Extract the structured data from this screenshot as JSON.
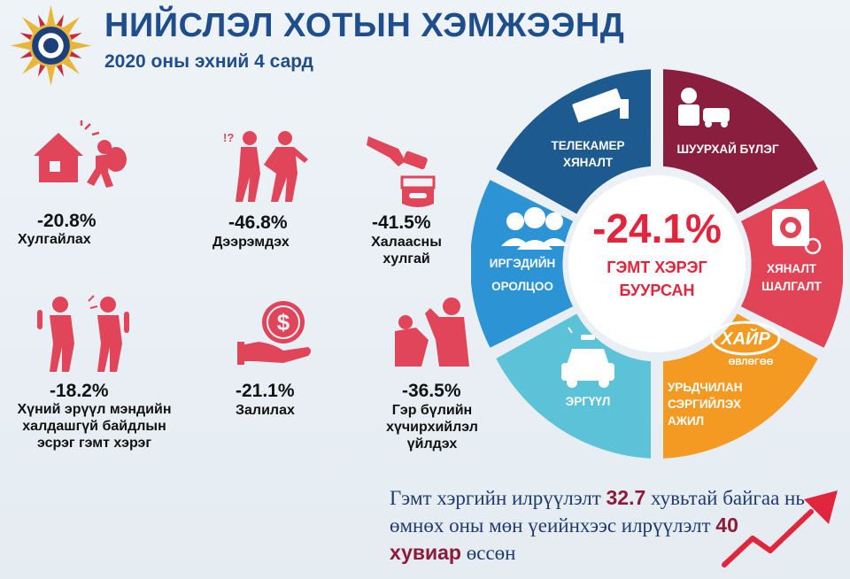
{
  "header": {
    "title": "НИЙСЛЭЛ ХОТЫН ХЭМЖЭЭНД",
    "subtitle": "2020 оны эхний 4 сард"
  },
  "crimes": [
    {
      "pct": "-20.8%",
      "label": "Хулгайлах",
      "icon": "burglary-icon"
    },
    {
      "pct": "-46.8%",
      "label": "Дээрэмдэх",
      "icon": "robbery-icon"
    },
    {
      "pct": "-41.5%",
      "label": "Халаасны хулгай",
      "icon": "pickpocket-icon"
    },
    {
      "pct": "-18.2%",
      "label": "Хүний эрүүл мэндийн халдашгүй байдлын эсрэг гэмт хэрэг",
      "icon": "assault-icon"
    },
    {
      "pct": "-21.1%",
      "label": "Залилах",
      "icon": "fraud-money-icon"
    },
    {
      "pct": "-36.5%",
      "label": "Гэр бүлийн хүчирхийлэл үйлдэх",
      "icon": "domestic-violence-icon"
    }
  ],
  "wheel": {
    "center_pct": "-24.1%",
    "center_line1": "ГЭМТ ХЭРЭГ",
    "center_line2": "БУУРСАН",
    "segments": [
      {
        "line1": "ТЕЛЕКАМЕР",
        "line2": "ХЯНАЛТ",
        "color": "#1d5a8f",
        "icon": "cctv-camera-icon"
      },
      {
        "line1": "ШУУРХАЙ БҮЛЭГ",
        "line2": "",
        "color": "#8a1e3f",
        "icon": "police-car-officer-icon"
      },
      {
        "line1": "ХЯНАЛТ",
        "line2": "ШАЛГАЛТ",
        "color": "#e04456",
        "icon": "inspection-icon"
      },
      {
        "line1": "УРЬДЧИЛАН",
        "line2": "СЭРГИЙЛЭХ",
        "line3": "АЖИЛ",
        "color": "#f49a23",
        "icon": "khair-logo-icon",
        "logo_text": "ХАЙР",
        "logo_sub": "ӨВЛӨГӨӨ"
      },
      {
        "line1": "ЭРГҮҮЛ",
        "line2": "",
        "color": "#5cc2d8",
        "icon": "patrol-car-icon"
      },
      {
        "line1": "ИРГЭДИЙН",
        "line2": "ОРОЛЦОО",
        "color": "#2c93d4",
        "icon": "citizens-group-icon"
      }
    ]
  },
  "detection": {
    "text_a": "Гэмт хэргийн илрүүлэлт",
    "value_a": "32.7",
    "text_b": "хувьтай байгаа нь өмнөх оны мөн үеийнхээс илрүүлэлт",
    "value_b": "40 хувиар",
    "text_c": "өссөн"
  },
  "colors": {
    "title": "#1f4e8c",
    "icon_red": "#e0455a",
    "highlight": "#8e1a3a",
    "arrow": "#e0253c"
  }
}
